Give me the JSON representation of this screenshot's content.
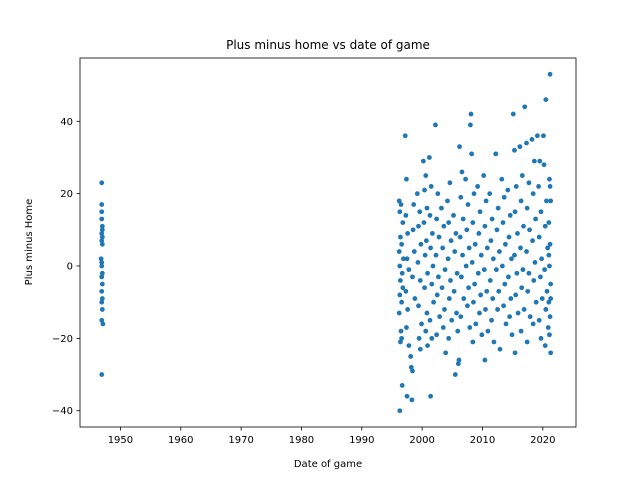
{
  "chart_data": {
    "type": "scatter",
    "title": "Plus minus home vs date of game",
    "xlabel": "Date of game",
    "ylabel": "Plus minus Home",
    "xlim": [
      1943.3,
      2025.5
    ],
    "ylim": [
      -44.5,
      57.5
    ],
    "xticks": [
      1950,
      1960,
      1970,
      1980,
      1990,
      2000,
      2010,
      2020
    ],
    "yticks": [
      -40,
      -20,
      0,
      20,
      40
    ],
    "grid": false,
    "marker_color": "#1f77b4",
    "series": [
      {
        "points": [
          [
            1946.9,
            23
          ],
          [
            1946.9,
            17
          ],
          [
            1946.9,
            15
          ],
          [
            1947.0,
            11
          ],
          [
            1947.0,
            10
          ],
          [
            1946.9,
            9
          ],
          [
            1947.0,
            8
          ],
          [
            1946.9,
            7
          ],
          [
            1947.0,
            6
          ],
          [
            1946.8,
            2
          ],
          [
            1946.9,
            1
          ],
          [
            1946.9,
            0
          ],
          [
            1947.0,
            -2
          ],
          [
            1946.9,
            -3
          ],
          [
            1947.0,
            -5
          ],
          [
            1946.9,
            -7
          ],
          [
            1947.0,
            -9
          ],
          [
            1946.9,
            -10
          ],
          [
            1947.0,
            -12
          ],
          [
            1946.9,
            -15
          ],
          [
            1947.1,
            -16
          ],
          [
            1946.9,
            -30
          ],
          [
            1946.9,
            13
          ],
          [
            1996.2,
            18
          ],
          [
            1996.5,
            17
          ],
          [
            1996.3,
            15
          ],
          [
            1996.8,
            12
          ],
          [
            1996.4,
            8
          ],
          [
            1996.6,
            6
          ],
          [
            1996.2,
            4
          ],
          [
            1996.9,
            2
          ],
          [
            1996.3,
            0
          ],
          [
            1996.7,
            -2
          ],
          [
            1996.4,
            -4
          ],
          [
            1996.8,
            -6
          ],
          [
            1996.3,
            -8
          ],
          [
            1996.6,
            -10
          ],
          [
            1996.2,
            -13
          ],
          [
            1996.5,
            -18
          ],
          [
            1996.6,
            -20
          ],
          [
            1996.4,
            -21
          ],
          [
            1996.7,
            -33
          ],
          [
            1996.3,
            -40
          ],
          [
            1997.2,
            36
          ],
          [
            1997.4,
            24
          ],
          [
            1997.3,
            14
          ],
          [
            1997.6,
            9
          ],
          [
            1997.5,
            2
          ],
          [
            1997.8,
            -1
          ],
          [
            1997.3,
            -7
          ],
          [
            1997.6,
            -12
          ],
          [
            1997.4,
            -17
          ],
          [
            1997.8,
            -22
          ],
          [
            1997.5,
            -36
          ],
          [
            1998.3,
            -37
          ],
          [
            1998.2,
            -28
          ],
          [
            1998.4,
            -29
          ],
          [
            1998.1,
            -25
          ],
          [
            1998.6,
            17
          ],
          [
            1998.5,
            10
          ],
          [
            1998.7,
            4
          ],
          [
            1998.4,
            -3
          ],
          [
            1998.8,
            -9
          ],
          [
            1999.2,
            20
          ],
          [
            1999.6,
            15
          ],
          [
            1999.4,
            11
          ],
          [
            1999.8,
            6
          ],
          [
            1999.3,
            1
          ],
          [
            1999.7,
            -4
          ],
          [
            1999.4,
            -11
          ],
          [
            1999.9,
            -16
          ],
          [
            1999.5,
            -20
          ],
          [
            1999.7,
            -23
          ],
          [
            2000.2,
            29
          ],
          [
            2000.6,
            25
          ],
          [
            2000.4,
            21
          ],
          [
            2000.8,
            16
          ],
          [
            2000.3,
            12
          ],
          [
            2000.7,
            7
          ],
          [
            2000.5,
            3
          ],
          [
            2000.9,
            -2
          ],
          [
            2000.4,
            -6
          ],
          [
            2000.8,
            -13
          ],
          [
            2000.6,
            -18
          ],
          [
            2000.9,
            -22
          ],
          [
            2001.2,
            30
          ],
          [
            2001.5,
            22
          ],
          [
            2001.3,
            14
          ],
          [
            2001.7,
            9
          ],
          [
            2001.4,
            5
          ],
          [
            2001.8,
            0
          ],
          [
            2001.6,
            -5
          ],
          [
            2001.9,
            -10
          ],
          [
            2001.3,
            -15
          ],
          [
            2001.6,
            -20
          ],
          [
            2001.4,
            -36
          ],
          [
            2002.2,
            39
          ],
          [
            2002.6,
            20
          ],
          [
            2002.4,
            13
          ],
          [
            2002.8,
            8
          ],
          [
            2002.3,
            3
          ],
          [
            2002.7,
            -3
          ],
          [
            2002.5,
            -8
          ],
          [
            2002.9,
            -14
          ],
          [
            2002.4,
            -19
          ],
          [
            2003.2,
            16
          ],
          [
            2003.6,
            11
          ],
          [
            2003.4,
            5
          ],
          [
            2003.8,
            -1
          ],
          [
            2003.3,
            -6
          ],
          [
            2003.7,
            -12
          ],
          [
            2003.5,
            -17
          ],
          [
            2003.9,
            -24
          ],
          [
            2004.2,
            18
          ],
          [
            2004.6,
            23
          ],
          [
            2004.4,
            12
          ],
          [
            2004.8,
            7
          ],
          [
            2004.3,
            2
          ],
          [
            2004.7,
            -4
          ],
          [
            2004.5,
            -9
          ],
          [
            2004.9,
            -15
          ],
          [
            2004.4,
            -20
          ],
          [
            2005.2,
            14
          ],
          [
            2005.6,
            9
          ],
          [
            2005.4,
            4
          ],
          [
            2005.8,
            -2
          ],
          [
            2005.3,
            -7
          ],
          [
            2005.7,
            -13
          ],
          [
            2005.5,
            -30
          ],
          [
            2005.9,
            -18
          ],
          [
            2006.2,
            33
          ],
          [
            2006.6,
            26
          ],
          [
            2006.4,
            19
          ],
          [
            2006.8,
            13
          ],
          [
            2006.3,
            8
          ],
          [
            2006.7,
            3
          ],
          [
            2006.5,
            -3
          ],
          [
            2006.9,
            -9
          ],
          [
            2006.4,
            -14
          ],
          [
            2006.1,
            -26
          ],
          [
            2006.0,
            -27
          ],
          [
            2007.2,
            24
          ],
          [
            2007.6,
            17
          ],
          [
            2007.4,
            10
          ],
          [
            2007.8,
            5
          ],
          [
            2007.3,
            0
          ],
          [
            2007.7,
            -6
          ],
          [
            2007.5,
            -11
          ],
          [
            2007.9,
            -17
          ],
          [
            2008.1,
            42
          ],
          [
            2008.0,
            39
          ],
          [
            2008.2,
            31
          ],
          [
            2008.6,
            20
          ],
          [
            2008.4,
            12
          ],
          [
            2008.8,
            6
          ],
          [
            2008.3,
            1
          ],
          [
            2008.7,
            -5
          ],
          [
            2008.5,
            -10
          ],
          [
            2008.9,
            -16
          ],
          [
            2008.4,
            -21
          ],
          [
            2009.2,
            22
          ],
          [
            2009.6,
            15
          ],
          [
            2009.4,
            9
          ],
          [
            2009.8,
            3
          ],
          [
            2009.3,
            -2
          ],
          [
            2009.7,
            -8
          ],
          [
            2009.5,
            -13
          ],
          [
            2009.9,
            -19
          ],
          [
            2010.2,
            25
          ],
          [
            2010.6,
            18
          ],
          [
            2010.4,
            11
          ],
          [
            2010.8,
            5
          ],
          [
            2010.3,
            -1
          ],
          [
            2010.7,
            -7
          ],
          [
            2010.5,
            -12
          ],
          [
            2010.9,
            -18
          ],
          [
            2010.4,
            -26
          ],
          [
            2011.2,
            20
          ],
          [
            2011.6,
            13
          ],
          [
            2011.4,
            7
          ],
          [
            2011.8,
            2
          ],
          [
            2011.3,
            -4
          ],
          [
            2011.7,
            -9
          ],
          [
            2011.5,
            -15
          ],
          [
            2011.9,
            -21
          ],
          [
            2012.2,
            31
          ],
          [
            2012.6,
            16
          ],
          [
            2012.4,
            10
          ],
          [
            2012.8,
            4
          ],
          [
            2012.3,
            -1
          ],
          [
            2012.7,
            -7
          ],
          [
            2012.5,
            -12
          ],
          [
            2012.9,
            -23
          ],
          [
            2013.2,
            24
          ],
          [
            2013.6,
            19
          ],
          [
            2013.4,
            12
          ],
          [
            2013.8,
            6
          ],
          [
            2013.3,
            0
          ],
          [
            2013.7,
            -5
          ],
          [
            2013.5,
            -11
          ],
          [
            2013.9,
            -16
          ],
          [
            2014.2,
            21
          ],
          [
            2014.6,
            14
          ],
          [
            2014.4,
            8
          ],
          [
            2014.8,
            2
          ],
          [
            2014.3,
            -3
          ],
          [
            2014.7,
            -9
          ],
          [
            2014.5,
            -14
          ],
          [
            2014.9,
            -19
          ],
          [
            2015.1,
            42
          ],
          [
            2015.3,
            32
          ],
          [
            2015.6,
            22
          ],
          [
            2015.4,
            15
          ],
          [
            2015.8,
            9
          ],
          [
            2015.3,
            3
          ],
          [
            2015.7,
            -2
          ],
          [
            2015.5,
            -8
          ],
          [
            2015.9,
            -13
          ],
          [
            2015.4,
            -24
          ],
          [
            2016.2,
            33
          ],
          [
            2016.6,
            25
          ],
          [
            2016.4,
            18
          ],
          [
            2016.8,
            11
          ],
          [
            2016.3,
            5
          ],
          [
            2016.7,
            -1
          ],
          [
            2016.5,
            -6
          ],
          [
            2016.9,
            -12
          ],
          [
            2016.4,
            -18
          ],
          [
            2017.0,
            44
          ],
          [
            2017.3,
            34
          ],
          [
            2017.7,
            23
          ],
          [
            2017.4,
            16
          ],
          [
            2017.8,
            10
          ],
          [
            2017.3,
            4
          ],
          [
            2017.7,
            -2
          ],
          [
            2017.5,
            -7
          ],
          [
            2017.9,
            -14
          ],
          [
            2017.4,
            -21
          ],
          [
            2018.2,
            35
          ],
          [
            2018.6,
            29
          ],
          [
            2018.4,
            20
          ],
          [
            2018.8,
            13
          ],
          [
            2018.3,
            7
          ],
          [
            2018.7,
            1
          ],
          [
            2018.5,
            -4
          ],
          [
            2018.9,
            -10
          ],
          [
            2018.4,
            -16
          ],
          [
            2019.1,
            36
          ],
          [
            2019.5,
            29
          ],
          [
            2019.3,
            22
          ],
          [
            2019.7,
            15
          ],
          [
            2019.4,
            8
          ],
          [
            2019.8,
            2
          ],
          [
            2019.6,
            -3
          ],
          [
            2019.9,
            -9
          ],
          [
            2019.4,
            -15
          ],
          [
            2019.7,
            -20
          ],
          [
            2020.1,
            36
          ],
          [
            2020.2,
            28
          ],
          [
            2020.6,
            18
          ],
          [
            2020.4,
            11
          ],
          [
            2020.8,
            5
          ],
          [
            2020.3,
            -1
          ],
          [
            2020.7,
            -7
          ],
          [
            2020.5,
            -12
          ],
          [
            2020.9,
            -17
          ],
          [
            2020.4,
            -22
          ],
          [
            2020.5,
            46
          ],
          [
            2021.2,
            53
          ],
          [
            2021.1,
            24
          ],
          [
            2021.3,
            18
          ],
          [
            2021.0,
            12
          ],
          [
            2021.2,
            6
          ],
          [
            2021.1,
            0
          ],
          [
            2021.3,
            -5
          ],
          [
            2021.0,
            -10
          ],
          [
            2021.2,
            -14
          ],
          [
            2021.1,
            -19
          ],
          [
            2021.3,
            -24
          ],
          [
            2021.2,
            22
          ],
          [
            2021.0,
            3
          ],
          [
            2021.3,
            -9
          ]
        ]
      }
    ]
  }
}
